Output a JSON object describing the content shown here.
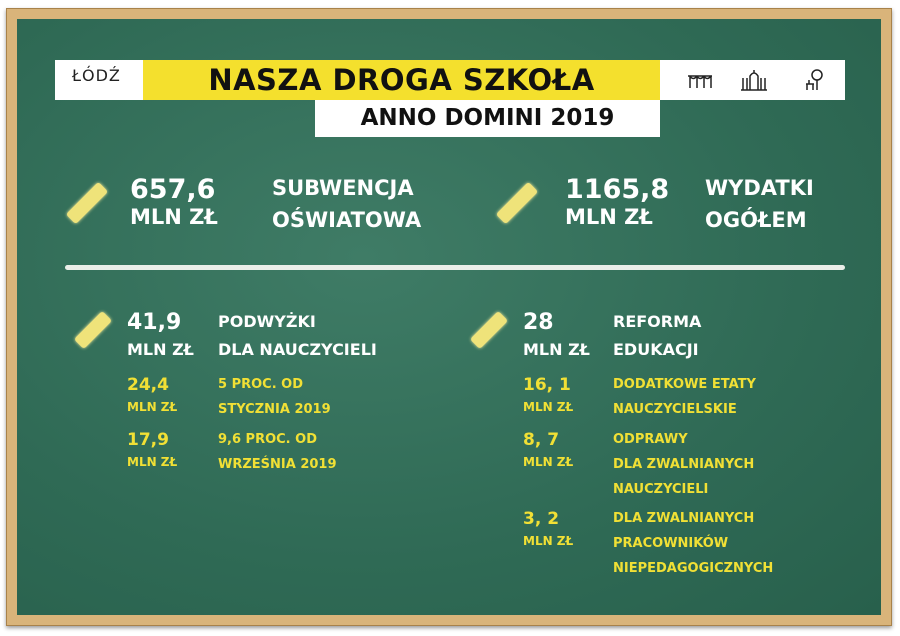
{
  "header": {
    "logo": "ŁÓDŹ",
    "title": "NASZA DROGA SZKOŁA",
    "subtitle": "ANNO DOMINI 2019",
    "icons": [
      "bridge-arches-icon",
      "palace-gate-icon",
      "tree-bench-icon"
    ]
  },
  "colors": {
    "board": "#2f6a55",
    "yellow": "#f4e02d",
    "frame": "#d9b47a"
  },
  "top": [
    {
      "value": "657,6",
      "unit": "MLN ZŁ",
      "label": [
        "SUBWENCJA",
        "OŚWIATOWA"
      ]
    },
    {
      "value": "1165,8",
      "unit": "MLN ZŁ",
      "label": [
        "WYDATKI",
        "OGÓŁEM"
      ]
    }
  ],
  "left": {
    "value": "41,9",
    "unit": "MLN ZŁ",
    "label": [
      "PODWYŻKI",
      "DLA NAUCZYCIELI"
    ],
    "items": [
      {
        "value": "24,4",
        "unit": "MLN ZŁ",
        "label": [
          "5 PROC. OD",
          "STYCZNIA 2019"
        ]
      },
      {
        "value": "17,9",
        "unit": "MLN ZŁ",
        "label": [
          "9,6 PROC. OD",
          "WRZEŚNIA 2019"
        ]
      }
    ]
  },
  "right": {
    "value": "28",
    "unit": "MLN ZŁ",
    "label": [
      "REFORMA",
      "EDUKACJI"
    ],
    "items": [
      {
        "value": "16, 1",
        "unit": "MLN ZŁ",
        "label": [
          "DODATKOWE ETATY",
          "NAUCZYCIELSKIE"
        ]
      },
      {
        "value": "8, 7",
        "unit": "MLN ZŁ",
        "label": [
          "ODPRAWY",
          "DLA ZWALNIANYCH",
          "NAUCZYCIELI"
        ]
      },
      {
        "value": "3, 2",
        "unit": "MLN ZŁ",
        "label": [
          "DLA ZWALNIANYCH",
          "PRACOWNIKÓW",
          "NIEPEDAGOGICZNYCH"
        ]
      }
    ]
  }
}
